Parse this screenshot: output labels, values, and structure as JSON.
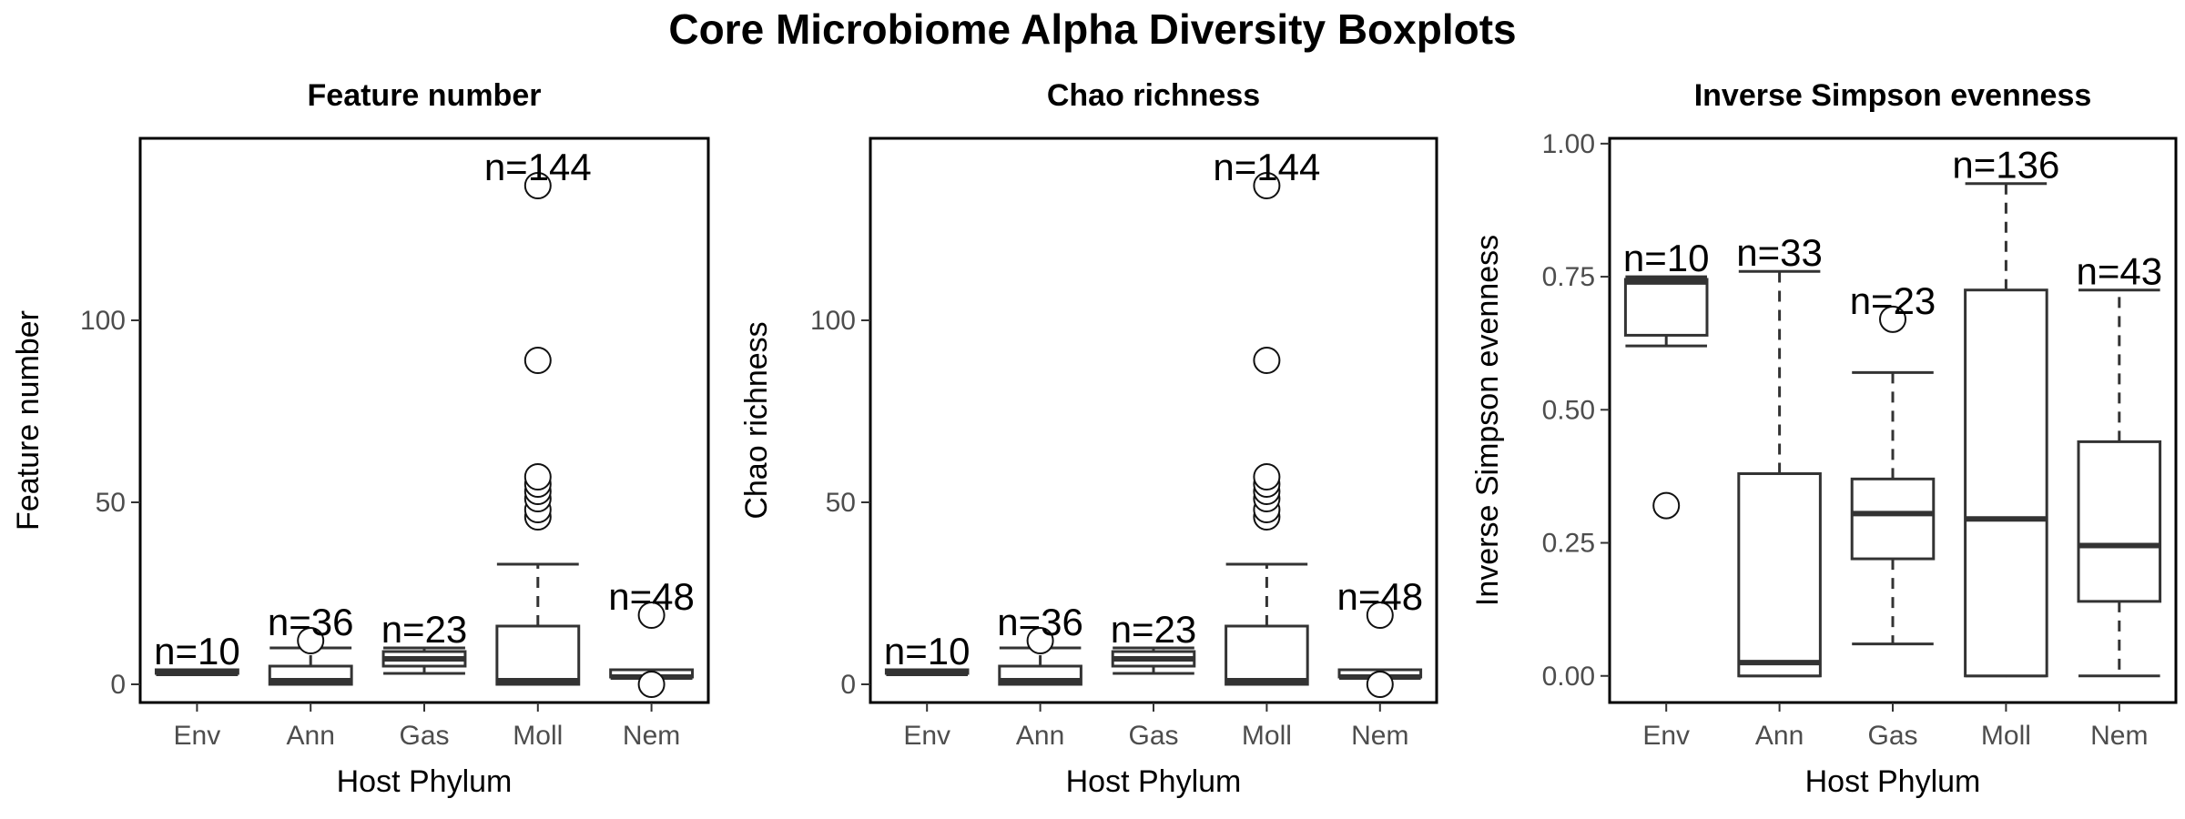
{
  "title": "Core Microbiome Alpha Diversity Boxplots",
  "chart_data": [
    {
      "type": "boxplot",
      "title": "Feature number",
      "xlabel": "Host Phylum",
      "ylabel": "Feature number",
      "ylim": [
        -5,
        150
      ],
      "yticks": [
        0,
        50,
        100
      ],
      "ytick_labels": [
        "0",
        "50",
        "100"
      ],
      "categories": [
        "Env",
        "Ann",
        "Gas",
        "Moll",
        "Nem"
      ],
      "boxes": [
        {
          "category": "Env",
          "n_label": "n=10",
          "whisker_low": 3,
          "q1": 3,
          "median": 3,
          "q3": 4,
          "whisker_high": 4,
          "outliers": []
        },
        {
          "category": "Ann",
          "n_label": "n=36",
          "whisker_low": 0,
          "q1": 0,
          "median": 1,
          "q3": 5,
          "whisker_high": 10,
          "outliers": [
            12
          ]
        },
        {
          "category": "Gas",
          "n_label": "n=23",
          "whisker_low": 3,
          "q1": 5,
          "median": 7,
          "q3": 9,
          "whisker_high": 10,
          "outliers": []
        },
        {
          "category": "Moll",
          "n_label": "n=144",
          "whisker_low": 0,
          "q1": 0,
          "median": 1,
          "q3": 16,
          "whisker_high": 33,
          "outliers": [
            46,
            48,
            51,
            53,
            55,
            57,
            89,
            137
          ]
        },
        {
          "category": "Nem",
          "n_label": "n=48",
          "whisker_low": 2,
          "q1": 2,
          "median": 2,
          "q3": 4,
          "whisker_high": 4,
          "outliers": [
            0,
            19
          ]
        }
      ]
    },
    {
      "type": "boxplot",
      "title": "Chao richness",
      "xlabel": "Host Phylum",
      "ylabel": "Chao richness",
      "ylim": [
        -5,
        150
      ],
      "yticks": [
        0,
        50,
        100
      ],
      "ytick_labels": [
        "0",
        "50",
        "100"
      ],
      "categories": [
        "Env",
        "Ann",
        "Gas",
        "Moll",
        "Nem"
      ],
      "boxes": [
        {
          "category": "Env",
          "n_label": "n=10",
          "whisker_low": 3,
          "q1": 3,
          "median": 3,
          "q3": 4,
          "whisker_high": 4,
          "outliers": []
        },
        {
          "category": "Ann",
          "n_label": "n=36",
          "whisker_low": 0,
          "q1": 0,
          "median": 1,
          "q3": 5,
          "whisker_high": 10,
          "outliers": [
            12
          ]
        },
        {
          "category": "Gas",
          "n_label": "n=23",
          "whisker_low": 3,
          "q1": 5,
          "median": 7,
          "q3": 9,
          "whisker_high": 10,
          "outliers": []
        },
        {
          "category": "Moll",
          "n_label": "n=144",
          "whisker_low": 0,
          "q1": 0,
          "median": 1,
          "q3": 16,
          "whisker_high": 33,
          "outliers": [
            46,
            48,
            51,
            53,
            55,
            57,
            89,
            137
          ]
        },
        {
          "category": "Nem",
          "n_label": "n=48",
          "whisker_low": 2,
          "q1": 2,
          "median": 2,
          "q3": 4,
          "whisker_high": 4,
          "outliers": [
            0,
            19
          ]
        }
      ]
    },
    {
      "type": "boxplot",
      "title": "Inverse Simpson evenness",
      "xlabel": "Host Phylum",
      "ylabel": "Inverse Simpson evenness",
      "ylim": [
        -0.05,
        1.01
      ],
      "yticks": [
        0,
        0.25,
        0.5,
        0.75,
        1.0
      ],
      "ytick_labels": [
        "0.00",
        "0.25",
        "0.50",
        "0.75",
        "1.00"
      ],
      "categories": [
        "Env",
        "Ann",
        "Gas",
        "Moll",
        "Nem"
      ],
      "boxes": [
        {
          "category": "Env",
          "n_label": "n=10",
          "whisker_low": 0.62,
          "q1": 0.64,
          "median": 0.74,
          "q3": 0.745,
          "whisker_high": 0.75,
          "outliers": [
            0.32
          ]
        },
        {
          "category": "Ann",
          "n_label": "n=33",
          "whisker_low": 0.0,
          "q1": 0.0,
          "median": 0.025,
          "q3": 0.38,
          "whisker_high": 0.76,
          "outliers": []
        },
        {
          "category": "Gas",
          "n_label": "n=23",
          "whisker_low": 0.06,
          "q1": 0.22,
          "median": 0.305,
          "q3": 0.37,
          "whisker_high": 0.57,
          "outliers": [
            0.67
          ]
        },
        {
          "category": "Moll",
          "n_label": "n=136",
          "whisker_low": 0.0,
          "q1": 0.0,
          "median": 0.295,
          "q3": 0.725,
          "whisker_high": 0.925,
          "outliers": []
        },
        {
          "category": "Nem",
          "n_label": "n=43",
          "whisker_low": 0.0,
          "q1": 0.14,
          "median": 0.245,
          "q3": 0.44,
          "whisker_high": 0.725,
          "outliers": []
        }
      ]
    }
  ]
}
